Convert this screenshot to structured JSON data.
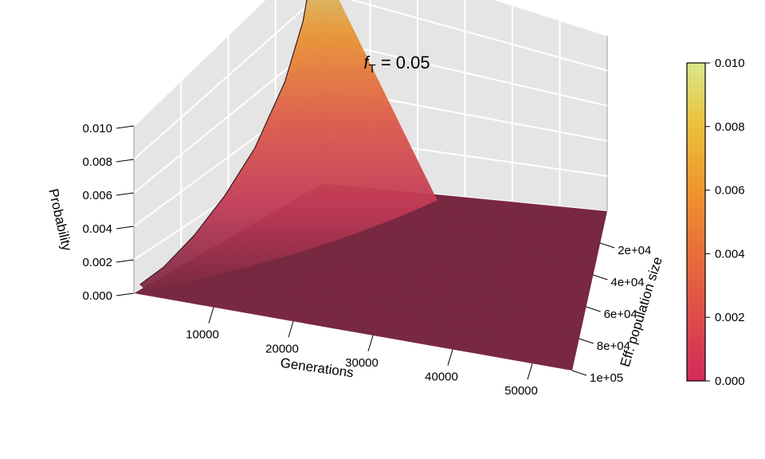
{
  "chart_data": {
    "type": "surface",
    "title_var": "f",
    "title_sub": "T",
    "title_rest": " = 0.05",
    "xlabel": "Generations",
    "ylabel": "Eff. population size",
    "zlabel": "Probability",
    "x_ticks": [
      "10000",
      "20000",
      "30000",
      "40000",
      "50000"
    ],
    "x_tick_values": [
      10000,
      20000,
      30000,
      40000,
      50000
    ],
    "y_ticks": [
      "2e+04",
      "4e+04",
      "6e+04",
      "8e+04",
      "1e+05"
    ],
    "y_tick_values": [
      20000,
      40000,
      60000,
      80000,
      100000
    ],
    "z_ticks": [
      "0.000",
      "0.002",
      "0.004",
      "0.006",
      "0.008",
      "0.010"
    ],
    "z_tick_values": [
      0,
      0.002,
      0.004,
      0.006,
      0.008,
      0.01
    ],
    "xlim": [
      0,
      55000
    ],
    "ylim": [
      0,
      100000
    ],
    "zlim": [
      0,
      0.01
    ],
    "colorbar_ticks": [
      "0.000",
      "0.002",
      "0.004",
      "0.006",
      "0.008",
      "0.010"
    ],
    "colorbar_values": [
      0,
      0.002,
      0.004,
      0.006,
      0.008,
      0.01
    ],
    "colormap": [
      "#d12a5b",
      "#dd4d4c",
      "#e86e3c",
      "#f0952e",
      "#ecbf3a",
      "#d9e88a"
    ],
    "surface_color_low": "#7a2942",
    "pane_color": "#e5e5e5",
    "grid_color": "#ffffff",
    "ridge_along_y_min": [
      {
        "x": 1000,
        "z": 0.0003
      },
      {
        "x": 5000,
        "z": 0.0005
      },
      {
        "x": 10000,
        "z": 0.0012
      },
      {
        "x": 15000,
        "z": 0.0022
      },
      {
        "x": 20000,
        "z": 0.0035
      },
      {
        "x": 25000,
        "z": 0.0055
      },
      {
        "x": 28000,
        "z": 0.0075
      },
      {
        "x": 30000,
        "z": 0.01
      }
    ]
  }
}
